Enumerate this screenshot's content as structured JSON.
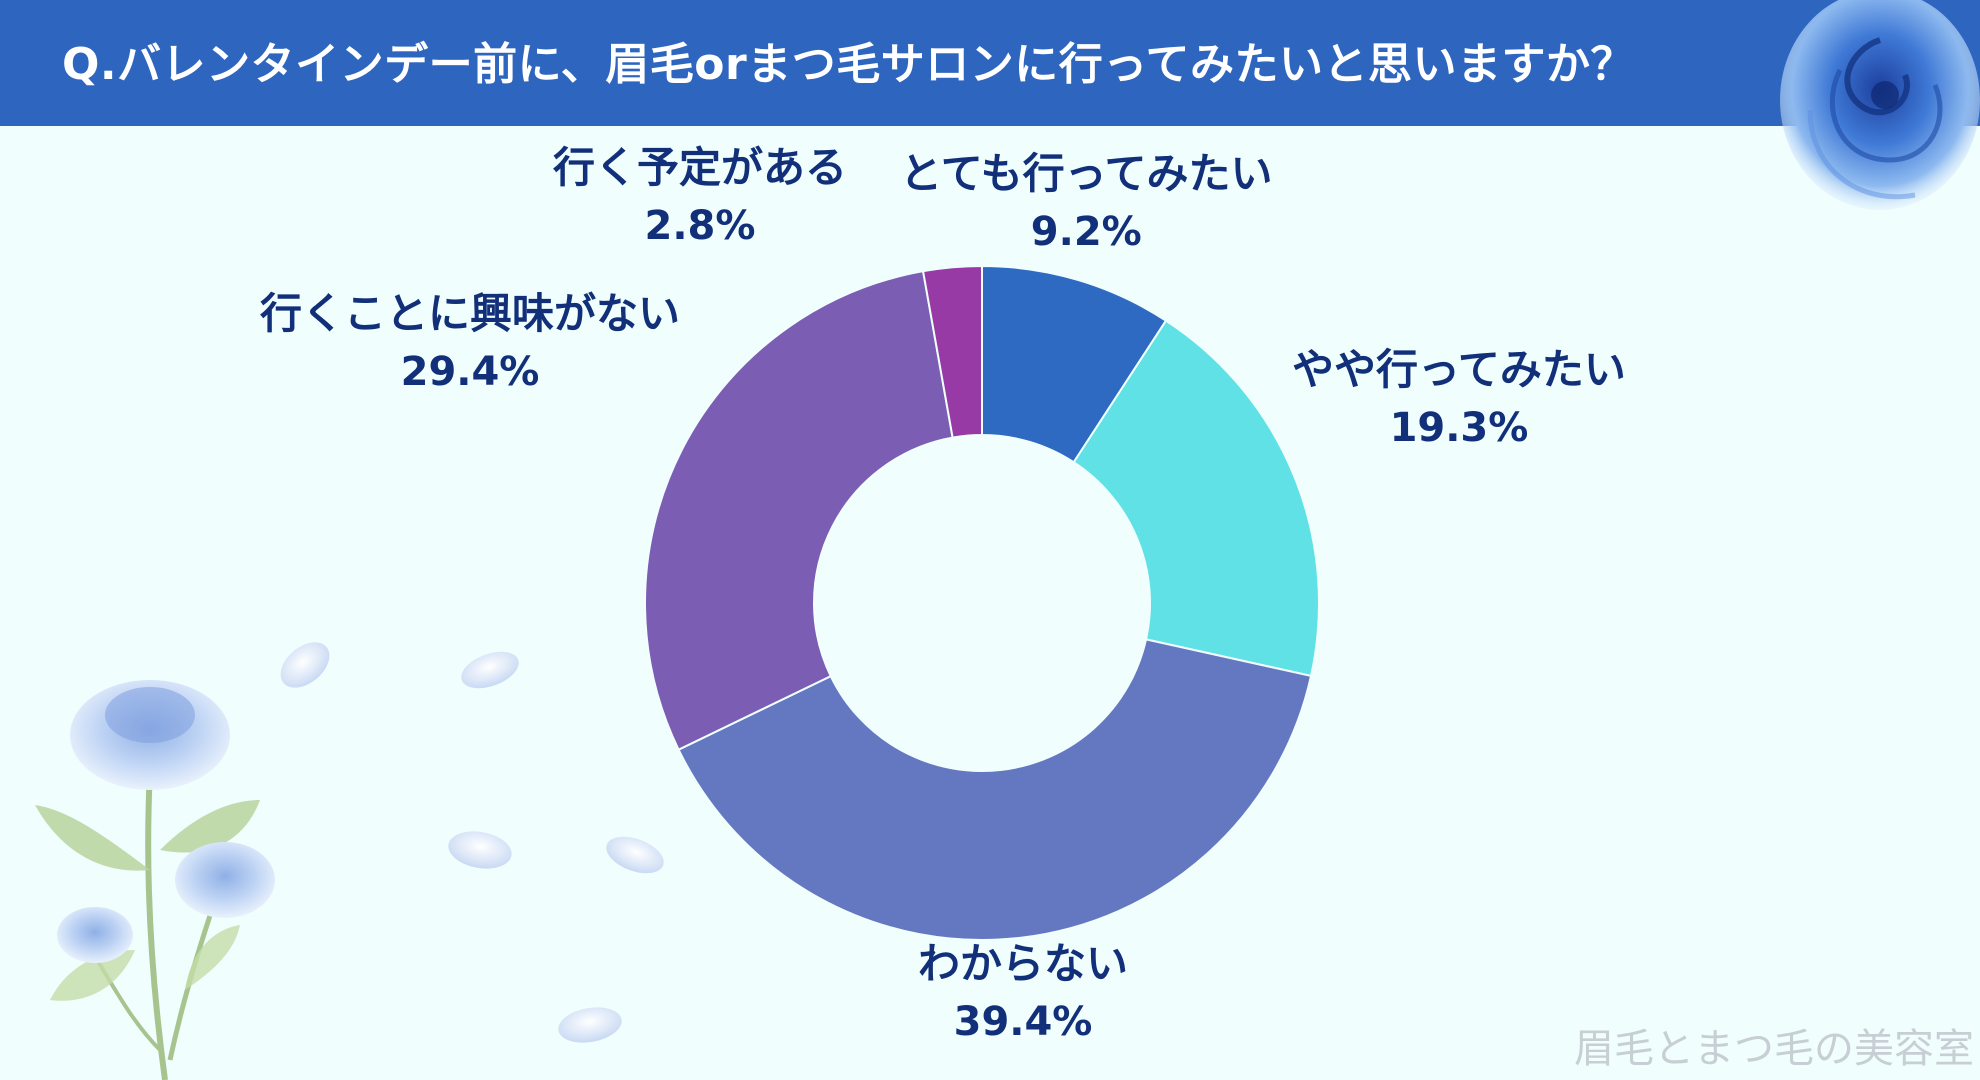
{
  "header": {
    "title": "Q.バレンタインデー前に、眉毛orまつ毛サロンに行ってみたいと思いますか？"
  },
  "chart_data": {
    "type": "pie",
    "donut": true,
    "categories": [
      "とても行ってみたい",
      "やや行ってみたい",
      "わからない",
      "行くことに興味がない",
      "行く予定がある"
    ],
    "values": [
      9.2,
      19.3,
      39.4,
      29.4,
      2.8
    ],
    "value_labels": [
      "9.2%",
      "19.3%",
      "39.4%",
      "29.4%",
      "2.8%"
    ],
    "colors": [
      "#2e6ac2",
      "#5fe1e6",
      "#6478c1",
      "#7c5db4",
      "#973aa6"
    ],
    "title": "",
    "legend": "none"
  },
  "watermark": "眉毛とまつ毛の美容室"
}
